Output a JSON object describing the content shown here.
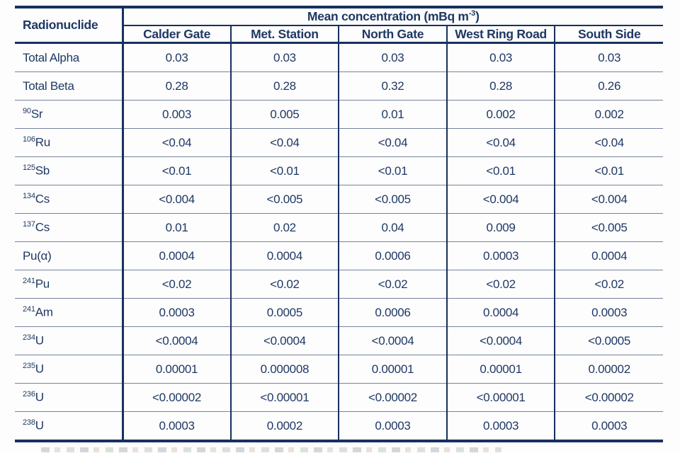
{
  "chart_data": {
    "type": "table",
    "corner_header": "Radionuclide",
    "group_header": {
      "text": "Mean concentration (mBq m",
      "sup": "-3",
      "suffix": ")"
    },
    "columns": [
      "Calder Gate",
      "Met. Station",
      "North Gate",
      "West Ring Road",
      "South Side"
    ],
    "rows": [
      {
        "sup": "",
        "label": "Total Alpha",
        "values": [
          "0.03",
          "0.03",
          "0.03",
          "0.03",
          "0.03"
        ]
      },
      {
        "sup": "",
        "label": "Total Beta",
        "values": [
          "0.28",
          "0.28",
          "0.32",
          "0.28",
          "0.26"
        ]
      },
      {
        "sup": "90",
        "label": "Sr",
        "values": [
          "0.003",
          "0.005",
          "0.01",
          "0.002",
          "0.002"
        ]
      },
      {
        "sup": "106",
        "label": "Ru",
        "values": [
          "<0.04",
          "<0.04",
          "<0.04",
          "<0.04",
          "<0.04"
        ]
      },
      {
        "sup": "125",
        "label": "Sb",
        "values": [
          "<0.01",
          "<0.01",
          "<0.01",
          "<0.01",
          "<0.01"
        ]
      },
      {
        "sup": "134",
        "label": "Cs",
        "values": [
          "<0.004",
          "<0.005",
          "<0.005",
          "<0.004",
          "<0.004"
        ]
      },
      {
        "sup": "137",
        "label": "Cs",
        "values": [
          "0.01",
          "0.02",
          "0.04",
          "0.009",
          "<0.005"
        ]
      },
      {
        "sup": "",
        "label": "Pu(α)",
        "values": [
          "0.0004",
          "0.0004",
          "0.0006",
          "0.0003",
          "0.0004"
        ]
      },
      {
        "sup": "241",
        "label": "Pu",
        "values": [
          "<0.02",
          "<0.02",
          "<0.02",
          "<0.02",
          "<0.02"
        ]
      },
      {
        "sup": "241",
        "label": "Am",
        "values": [
          "0.0003",
          "0.0005",
          "0.0006",
          "0.0004",
          "0.0003"
        ]
      },
      {
        "sup": "234",
        "label": "U",
        "values": [
          "<0.0004",
          "<0.0004",
          "<0.0004",
          "<0.0004",
          "<0.0005"
        ]
      },
      {
        "sup": "235",
        "label": "U",
        "values": [
          "0.00001",
          "0.000008",
          "0.00001",
          "0.00001",
          "0.00002"
        ]
      },
      {
        "sup": "236",
        "label": "U",
        "values": [
          "<0.00002",
          "<0.00001",
          "<0.00002",
          "<0.00001",
          "<0.00002"
        ]
      },
      {
        "sup": "238",
        "label": "U",
        "values": [
          "0.0003",
          "0.0002",
          "0.0003",
          "0.0003",
          "0.0003"
        ]
      }
    ],
    "colors": {
      "text_navy": "#1f3864",
      "border_navy": "#17305f",
      "row_separator_gray": "#76839b",
      "background": "#fdfdfd"
    }
  }
}
